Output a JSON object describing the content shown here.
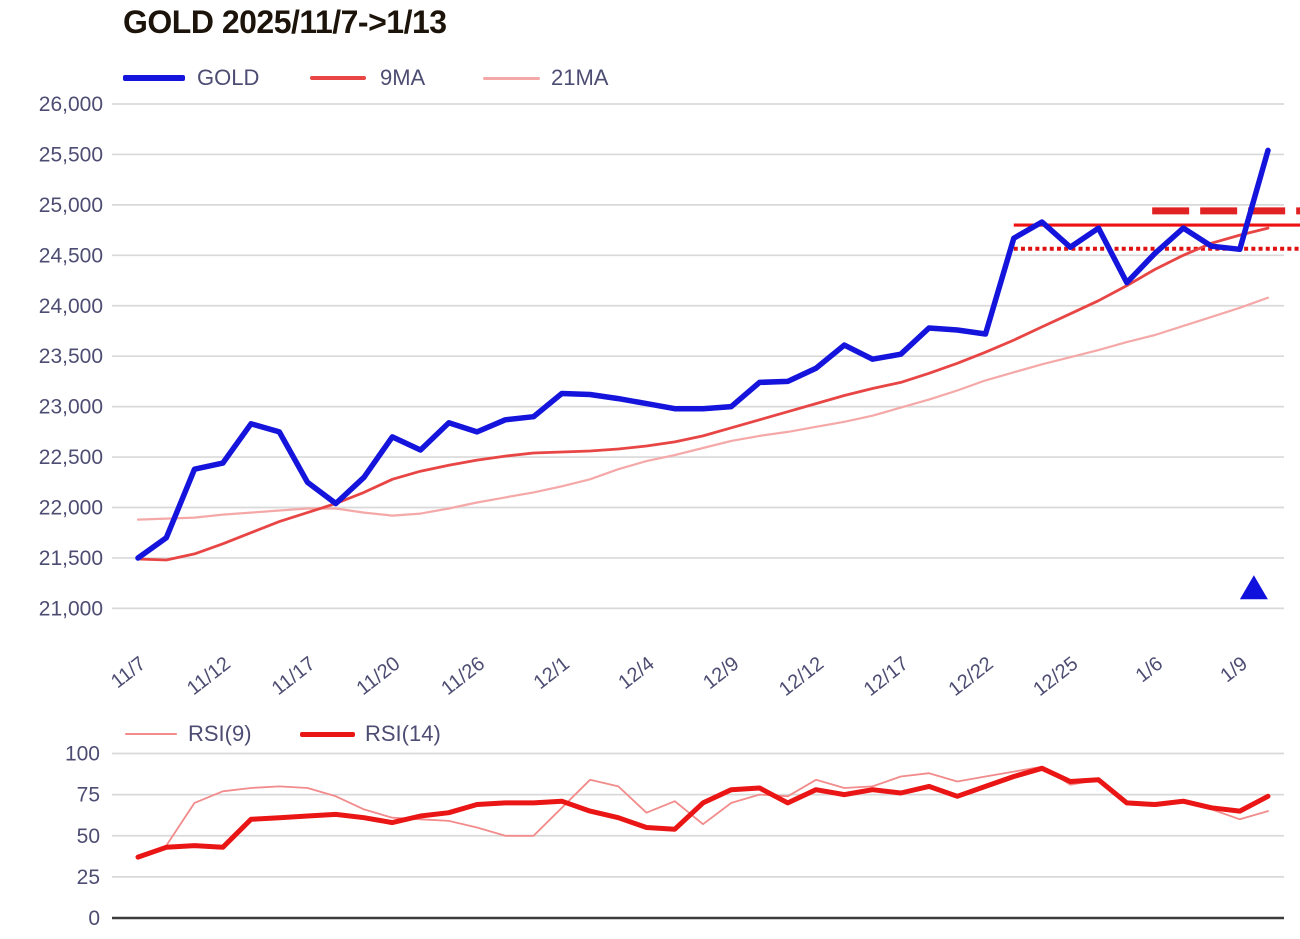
{
  "title": "GOLD 2025/11/7->1/13",
  "colors": {
    "background": "#ffffff",
    "title_text": "#1c140a",
    "axis_label_text": "#4d4d73",
    "gridline": "#d9d9d9",
    "rsi_zero_line": "#3c3c3c",
    "gold_blue": "#1414dc",
    "ma9_red": "#e84545",
    "ma21_pink": "#f5a8a8",
    "rsi9_light_red": "#f28b8b",
    "rsi14_red": "#ea1515",
    "annotation_red": "#ee1111",
    "marker_blue": "#1111dd"
  },
  "chart_data": [
    {
      "type": "line",
      "title": "GOLD 2025/11/7->1/13",
      "xlabel": "",
      "ylabel": "",
      "ylim": [
        21000,
        26000
      ],
      "grid": true,
      "legend_position": "top-left",
      "n_points": 41,
      "y_ticks": [
        "26,000",
        "25,500",
        "25,000",
        "24,500",
        "24,000",
        "23,500",
        "23,000",
        "22,500",
        "22,000",
        "21,500",
        "21,000"
      ],
      "y_tick_values": [
        26000,
        25500,
        25000,
        24500,
        24000,
        23500,
        23000,
        22500,
        22000,
        21500,
        21000
      ],
      "x_tick_labels": [
        "11/7",
        "11/12",
        "11/17",
        "11/20",
        "11/26",
        "12/1",
        "12/4",
        "12/9",
        "12/12",
        "12/17",
        "12/22",
        "12/25",
        "1/6",
        "1/9"
      ],
      "x_tick_indices": [
        0,
        3,
        6,
        9,
        12,
        15,
        18,
        21,
        24,
        27,
        30,
        33,
        36,
        39
      ],
      "series": [
        {
          "name": "GOLD",
          "color": "#1414dc",
          "width": 5.5,
          "values": [
            21500,
            21700,
            22380,
            22440,
            22830,
            22750,
            22250,
            22040,
            22300,
            22700,
            22570,
            22840,
            22750,
            22870,
            22900,
            23130,
            23120,
            23080,
            23030,
            22980,
            22980,
            23000,
            23240,
            23250,
            23380,
            23610,
            23470,
            23520,
            23780,
            23760,
            23720,
            24670,
            24830,
            24580,
            24770,
            24230,
            24520,
            24770,
            24590,
            24560,
            25540
          ]
        },
        {
          "name": "9MA",
          "color": "#e84545",
          "width": 2.8,
          "values": [
            21490,
            21480,
            21540,
            21640,
            21750,
            21860,
            21950,
            22040,
            22150,
            22280,
            22360,
            22420,
            22470,
            22510,
            22540,
            22550,
            22560,
            22580,
            22610,
            22650,
            22710,
            22790,
            22870,
            22950,
            23030,
            23110,
            23180,
            23240,
            23330,
            23430,
            23540,
            23660,
            23790,
            23920,
            24050,
            24200,
            24360,
            24500,
            24620,
            24700,
            24770
          ]
        },
        {
          "name": "21MA",
          "color": "#f5a8a8",
          "width": 2.2,
          "values": [
            21880,
            21890,
            21900,
            21930,
            21950,
            21970,
            21990,
            21990,
            21950,
            21920,
            21940,
            21990,
            22050,
            22100,
            22150,
            22210,
            22280,
            22380,
            22460,
            22520,
            22590,
            22660,
            22710,
            22750,
            22800,
            22850,
            22910,
            22990,
            23070,
            23160,
            23260,
            23340,
            23420,
            23490,
            23560,
            23640,
            23710,
            23800,
            23890,
            23980,
            24080
          ]
        }
      ],
      "annotations": [
        {
          "name": "resistance-solid-line",
          "style": "solid",
          "value": 24800,
          "from_index": 31,
          "to_edge": true,
          "color": "#ee1111",
          "width": 3.2
        },
        {
          "name": "support-dotted-line",
          "style": "dotted",
          "value": 24565,
          "from_index": 31,
          "to_edge": true,
          "color": "#e01111",
          "width": 4
        },
        {
          "name": "target-thick-dashed-line",
          "style": "long-dash",
          "value": 24940,
          "from_index": 35.9,
          "to_edge": true,
          "color": "#e02222",
          "width": 7
        }
      ],
      "marker": {
        "shape": "triangle-up",
        "x_index": 39.5,
        "value": 21200,
        "color": "#1111dd"
      }
    },
    {
      "type": "line",
      "title": "RSI",
      "ylim": [
        0,
        100
      ],
      "grid": true,
      "n_points": 41,
      "y_ticks": [
        "100",
        "75",
        "50",
        "25",
        "0"
      ],
      "y_tick_values": [
        100,
        75,
        50,
        25,
        0
      ],
      "series": [
        {
          "name": "RSI(9)",
          "color": "#f28b8b",
          "width": 1.8,
          "values": [
            37,
            44,
            70,
            77,
            79,
            80,
            79,
            74,
            66,
            61,
            60,
            59,
            55,
            50,
            50,
            67,
            84,
            80,
            64,
            71,
            57,
            70,
            75,
            74,
            84,
            79,
            80,
            86,
            88,
            83,
            86,
            89,
            92,
            81,
            84,
            69,
            68,
            70,
            66,
            60,
            65
          ]
        },
        {
          "name": "RSI(14)",
          "color": "#ea1515",
          "width": 5,
          "values": [
            37,
            43,
            44,
            43,
            60,
            61,
            62,
            63,
            61,
            58,
            62,
            64,
            69,
            70,
            70,
            71,
            65,
            61,
            55,
            54,
            70,
            78,
            79,
            70,
            78,
            75,
            78,
            76,
            80,
            74,
            80,
            86,
            91,
            83,
            84,
            70,
            69,
            71,
            67,
            65,
            74
          ]
        }
      ]
    }
  ]
}
